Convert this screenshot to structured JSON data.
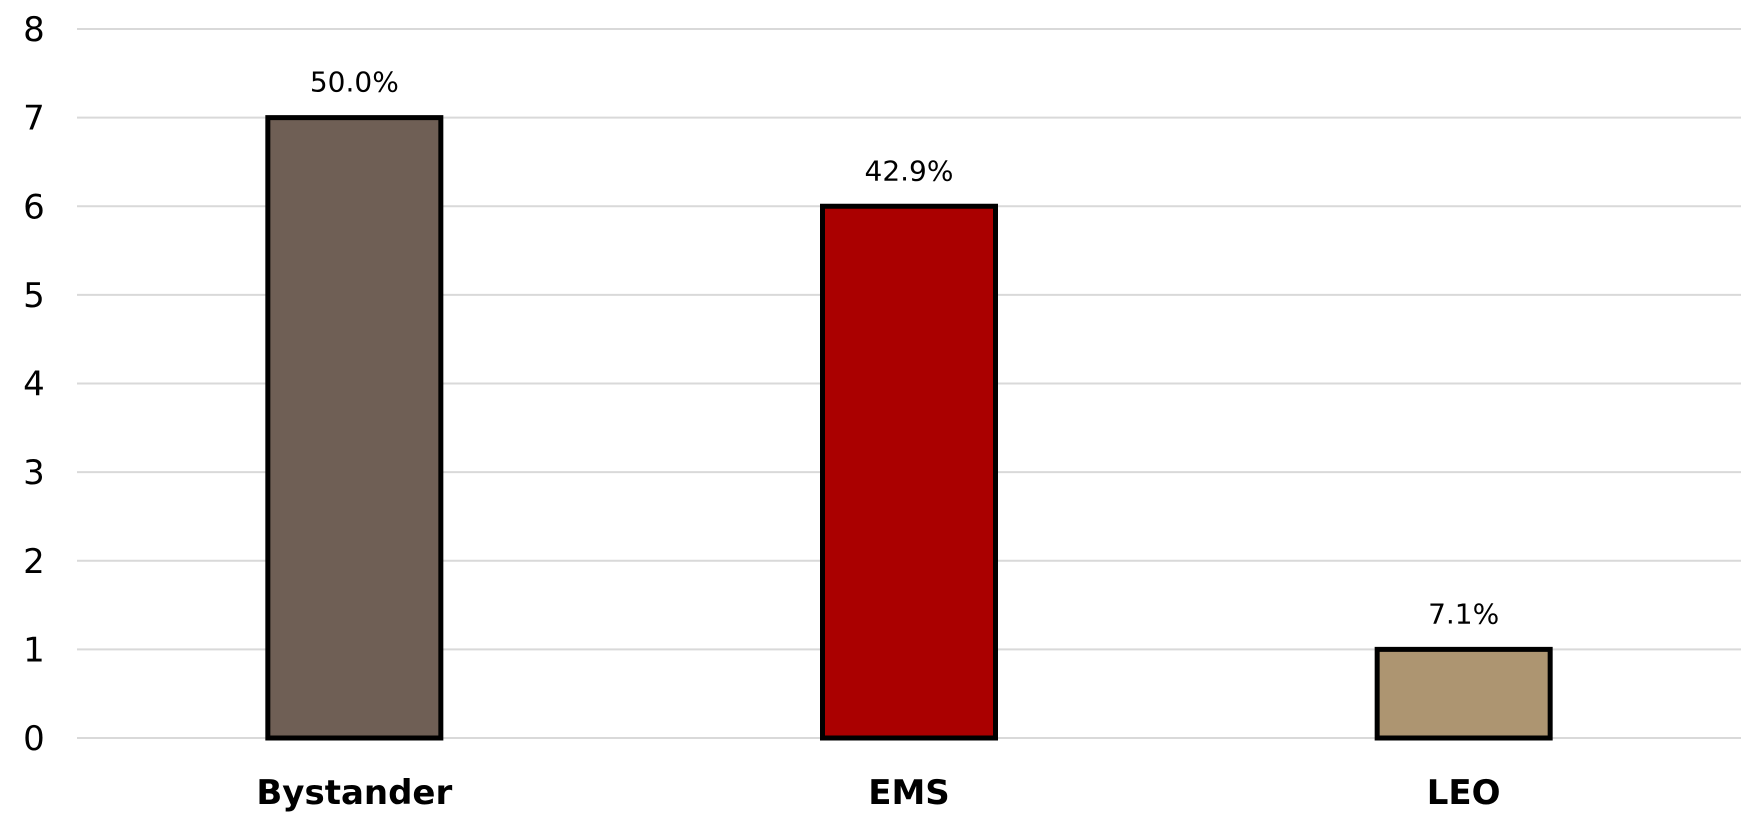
{
  "chart_data": {
    "type": "bar",
    "categories": [
      "Bystander",
      "EMS",
      "LEO"
    ],
    "values": [
      7,
      6,
      1
    ],
    "data_labels": [
      "50.0%",
      "42.9%",
      "7.1%"
    ],
    "colors": [
      "#6f5f55",
      "#aa0000",
      "#ad9571"
    ],
    "title": "",
    "xlabel": "",
    "ylabel": "",
    "ylim": [
      0,
      8
    ],
    "yticks": [
      0,
      1,
      2,
      3,
      4,
      5,
      6,
      7,
      8
    ],
    "grid": true,
    "legend": "none"
  }
}
